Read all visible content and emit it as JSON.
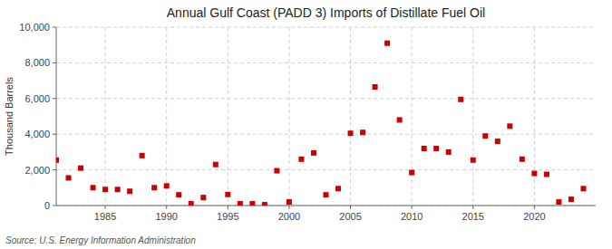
{
  "chart_data": {
    "type": "scatter",
    "title": "Annual Gulf Coast (PADD 3) Imports of Distillate Fuel Oil",
    "y_label": "Thousand Barrels",
    "annotations": [
      "Source: U.S. Energy Information Administration"
    ],
    "color": "#cc0000",
    "marker": "square",
    "grid": true,
    "xlim": [
      1981,
      2025
    ],
    "ylim": [
      0,
      10000
    ],
    "xticks": [
      1985,
      1990,
      1995,
      2000,
      2005,
      2010,
      2015,
      2020
    ],
    "yticks": [
      0,
      {
        "value": 2000,
        "label": "2,000"
      },
      {
        "value": 4000,
        "label": "4,000"
      },
      {
        "value": 6000,
        "label": "6,000"
      },
      {
        "value": 8000,
        "label": "8,000"
      },
      {
        "value": 10000,
        "label": "10,000"
      }
    ],
    "x": [
      1981,
      1982,
      1983,
      1984,
      1985,
      1986,
      1987,
      1988,
      1989,
      1990,
      1991,
      1992,
      1993,
      1994,
      1995,
      1996,
      1997,
      1998,
      1999,
      2000,
      2001,
      2002,
      2003,
      2004,
      2005,
      2006,
      2007,
      2008,
      2009,
      2010,
      2011,
      2012,
      2013,
      2014,
      2015,
      2016,
      2017,
      2018,
      2019,
      2020,
      2021,
      2022,
      2023,
      2024
    ],
    "values": [
      2550,
      1550,
      2100,
      1000,
      900,
      900,
      800,
      2800,
      1000,
      1100,
      600,
      100,
      450,
      2300,
      620,
      100,
      100,
      50,
      1950,
      200,
      2600,
      2950,
      600,
      950,
      4050,
      4100,
      6650,
      9100,
      4800,
      1850,
      3200,
      3200,
      3000,
      5950,
      2550,
      3900,
      3600,
      4450,
      2600,
      1800,
      1750,
      200,
      350,
      950
    ]
  }
}
